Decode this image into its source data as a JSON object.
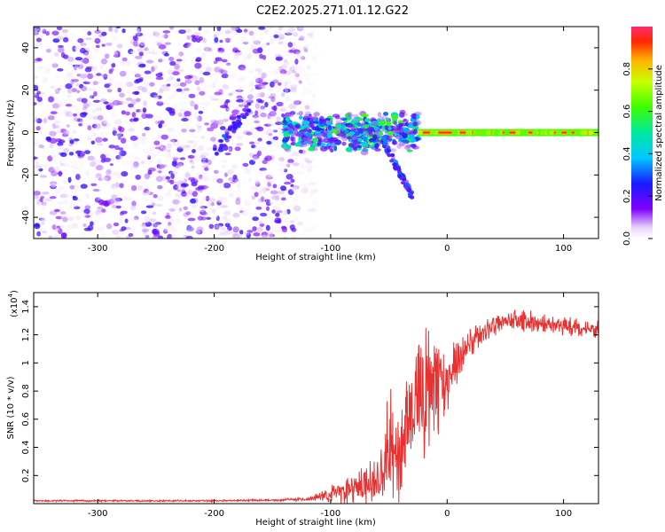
{
  "title": "C2E2.2025.271.01.12.G22",
  "chart_data": [
    {
      "type": "heatmap",
      "name": "spectrogram",
      "xlabel": "Height of straight line (km)",
      "ylabel": "Frequency (Hz)",
      "xlim": [
        -355,
        130
      ],
      "ylim": [
        -50,
        50
      ],
      "xticks": [
        -300,
        -200,
        -100,
        0,
        100
      ],
      "yticks": [
        -40,
        -20,
        0,
        20,
        40
      ],
      "colorbar": {
        "label": "Normalized spectral amplitude",
        "range": [
          0,
          1
        ],
        "ticks": [
          "0.0",
          "0.2",
          "0.4",
          "0.6",
          "0.8"
        ],
        "tick_values": [
          0.0,
          0.2,
          0.4,
          0.6,
          0.8
        ]
      },
      "features": [
        {
          "desc": "scattered low-amplitude noise",
          "x_range": [
            -355,
            -110
          ],
          "y_range": [
            -50,
            50
          ],
          "amplitude": 0.15
        },
        {
          "desc": "diffuse echo near zero Hz",
          "x_range": [
            -140,
            -25
          ],
          "y_range": [
            -10,
            8
          ],
          "amplitude": 0.45
        },
        {
          "desc": "descending branch",
          "x_range": [
            -55,
            -30
          ],
          "y_range": [
            -30,
            -5
          ],
          "amplitude": 0.3
        },
        {
          "desc": "steady tone at 0 Hz",
          "x_range": [
            -25,
            130
          ],
          "y_range": [
            -1,
            1
          ],
          "amplitude": 0.95
        }
      ]
    },
    {
      "type": "line",
      "name": "snr",
      "xlabel": "Height of straight line (km)",
      "ylabel": "SNR (10 * v/v)",
      "yscale_label": "(x10",
      "yscale_exp": "4",
      "yscale_close": ")",
      "xlim": [
        -355,
        130
      ],
      "ylim": [
        0,
        1.5
      ],
      "xticks": [
        -300,
        -200,
        -100,
        0,
        100
      ],
      "yticks": [
        0.2,
        0.4,
        0.6,
        0.8,
        1.0,
        1.2,
        1.4
      ],
      "ytick_labels": [
        "0.2",
        "0.4",
        "0.6",
        "0.8",
        "1",
        "1.2",
        "1.4"
      ],
      "color": "#e83232",
      "series": [
        {
          "name": "SNR",
          "x": [
            -355,
            -300,
            -250,
            -200,
            -150,
            -120,
            -100,
            -90,
            -80,
            -70,
            -60,
            -50,
            -40,
            -30,
            -20,
            -10,
            0,
            10,
            20,
            30,
            40,
            50,
            60,
            70,
            80,
            90,
            100,
            110,
            120,
            130
          ],
          "y": [
            0.02,
            0.02,
            0.02,
            0.02,
            0.025,
            0.03,
            0.06,
            0.1,
            0.12,
            0.15,
            0.2,
            0.28,
            0.42,
            0.65,
            0.78,
            0.8,
            0.88,
            1.02,
            1.15,
            1.22,
            1.27,
            1.29,
            1.3,
            1.29,
            1.28,
            1.27,
            1.26,
            1.25,
            1.24,
            1.24
          ],
          "noise": [
            0.005,
            0.005,
            0.005,
            0.005,
            0.006,
            0.01,
            0.05,
            0.08,
            0.1,
            0.12,
            0.15,
            0.22,
            0.3,
            0.35,
            0.35,
            0.3,
            0.2,
            0.12,
            0.08,
            0.07,
            0.07,
            0.06,
            0.06,
            0.06,
            0.05,
            0.05,
            0.05,
            0.05,
            0.05,
            0.05
          ]
        }
      ]
    }
  ]
}
